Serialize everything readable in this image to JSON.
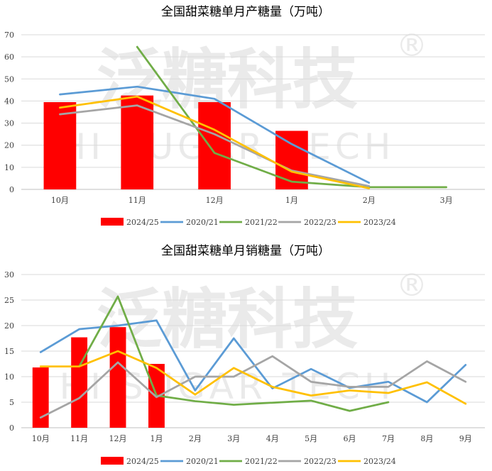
{
  "watermark": {
    "main": "泛糖科技",
    "sub": "HI SUGAR TECH",
    "mark": "®"
  },
  "colors": {
    "2024/25": "#ff0000",
    "2020/21": "#5b9bd5",
    "2021/22": "#70ad47",
    "2022/23": "#a5a5a5",
    "2023/24": "#ffc000"
  },
  "chart_data": [
    {
      "type": "bar+line",
      "title": "全国甜菜糖单月产糖量（万吨）",
      "categories": [
        "10月",
        "11月",
        "12月",
        "1月",
        "2月",
        "3月"
      ],
      "ylim": [
        0,
        70
      ],
      "yticks": [
        0,
        10,
        20,
        30,
        40,
        50,
        60,
        70
      ],
      "bar_series": {
        "name": "2024/25",
        "values": [
          39.5,
          42.5,
          39.5,
          26.5,
          null,
          null
        ]
      },
      "line_series": [
        {
          "name": "2020/21",
          "values": [
            43,
            46.5,
            41,
            20.5,
            3,
            null
          ]
        },
        {
          "name": "2021/22",
          "values": [
            null,
            64.5,
            16.5,
            3.5,
            1,
            1
          ]
        },
        {
          "name": "2022/23",
          "values": [
            34,
            38,
            25,
            8.5,
            1.5,
            null
          ]
        },
        {
          "name": "2023/24",
          "values": [
            37,
            42,
            27,
            8,
            0.5,
            null
          ]
        }
      ],
      "legend": [
        "2024/25",
        "2020/21",
        "2021/22",
        "2022/23",
        "2023/24"
      ],
      "legend_position": "bottom"
    },
    {
      "type": "bar+line",
      "title": "全国甜菜糖单月销糖量（万吨）",
      "categories": [
        "10月",
        "11月",
        "12月",
        "1月",
        "2月",
        "3月",
        "4月",
        "5月",
        "6月",
        "7月",
        "8月",
        "9月"
      ],
      "ylim": [
        0,
        30
      ],
      "yticks": [
        0,
        5,
        10,
        15,
        20,
        25,
        30
      ],
      "bar_series": {
        "name": "2024/25",
        "values": [
          11.8,
          17.7,
          19.7,
          12.5,
          null,
          null,
          null,
          null,
          null,
          null,
          null,
          null
        ]
      },
      "line_series": [
        {
          "name": "2020/21",
          "values": [
            14.8,
            19.3,
            20,
            21,
            7.3,
            17.5,
            7.7,
            11.5,
            7.8,
            9,
            5,
            12.3
          ]
        },
        {
          "name": "2021/22",
          "values": [
            null,
            12,
            25.7,
            6.3,
            5.2,
            4.5,
            4.9,
            5.3,
            3.3,
            5,
            null,
            null
          ]
        },
        {
          "name": "2022/23",
          "values": [
            2,
            5.8,
            12.8,
            6,
            10,
            10,
            14,
            9,
            8,
            8,
            13,
            9
          ]
        },
        {
          "name": "2023/24",
          "values": [
            12,
            12,
            15,
            11.7,
            6.5,
            11.7,
            8,
            6.3,
            7.3,
            6.8,
            8.9,
            4.7
          ]
        }
      ],
      "legend": [
        "2024/25",
        "2020/21",
        "2021/22",
        "2022/23",
        "2023/24"
      ],
      "legend_position": "bottom"
    }
  ]
}
